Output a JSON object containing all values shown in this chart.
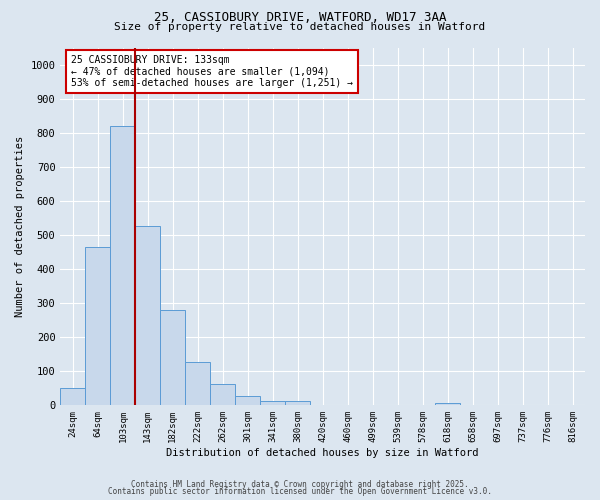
{
  "title_line1": "25, CASSIOBURY DRIVE, WATFORD, WD17 3AA",
  "title_line2": "Size of property relative to detached houses in Watford",
  "xlabel": "Distribution of detached houses by size in Watford",
  "ylabel": "Number of detached properties",
  "categories": [
    "24sqm",
    "64sqm",
    "103sqm",
    "143sqm",
    "182sqm",
    "222sqm",
    "262sqm",
    "301sqm",
    "341sqm",
    "380sqm",
    "420sqm",
    "460sqm",
    "499sqm",
    "539sqm",
    "578sqm",
    "618sqm",
    "658sqm",
    "697sqm",
    "737sqm",
    "776sqm",
    "816sqm"
  ],
  "values": [
    48,
    465,
    820,
    525,
    280,
    127,
    62,
    25,
    12,
    10,
    0,
    0,
    0,
    0,
    0,
    5,
    0,
    0,
    0,
    0,
    0
  ],
  "bar_color": "#c8d8eb",
  "bar_edge_color": "#5b9bd5",
  "highlight_line_color": "#aa0000",
  "annotation_text": "25 CASSIOBURY DRIVE: 133sqm\n← 47% of detached houses are smaller (1,094)\n53% of semi-detached houses are larger (1,251) →",
  "annotation_box_color": "#ffffff",
  "annotation_box_edge": "#cc0000",
  "ylim": [
    0,
    1050
  ],
  "yticks": [
    0,
    100,
    200,
    300,
    400,
    500,
    600,
    700,
    800,
    900,
    1000
  ],
  "background_color": "#dce6f0",
  "grid_color": "#ffffff",
  "footer_line1": "Contains HM Land Registry data © Crown copyright and database right 2025.",
  "footer_line2": "Contains public sector information licensed under the Open Government Licence v3.0."
}
